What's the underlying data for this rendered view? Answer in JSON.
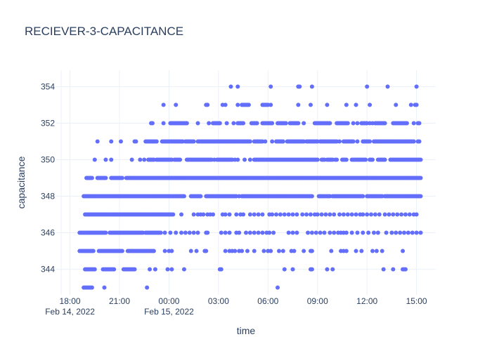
{
  "chart_data": {
    "type": "scatter",
    "title": "RECIEVER-3-CAPACITANCE",
    "xlabel": "time",
    "ylabel": "capacitance",
    "marker_color": "#636efa",
    "grid": true,
    "x_range": [
      "2022-02-14T17:10",
      "2022-02-15T16:10"
    ],
    "y_range": [
      342.6,
      354.9
    ],
    "x_ticks": [
      {
        "t": "2022-02-14T18:00",
        "label": "18:00",
        "sub": "Feb 14, 2022"
      },
      {
        "t": "2022-02-14T21:00",
        "label": "21:00",
        "sub": ""
      },
      {
        "t": "2022-02-15T00:00",
        "label": "00:00",
        "sub": "Feb 15, 2022"
      },
      {
        "t": "2022-02-15T03:00",
        "label": "03:00",
        "sub": ""
      },
      {
        "t": "2022-02-15T06:00",
        "label": "06:00",
        "sub": ""
      },
      {
        "t": "2022-02-15T09:00",
        "label": "09:00",
        "sub": ""
      },
      {
        "t": "2022-02-15T12:00",
        "label": "12:00",
        "sub": ""
      },
      {
        "t": "2022-02-15T15:00",
        "label": "15:00",
        "sub": ""
      }
    ],
    "y_ticks": [
      344,
      346,
      348,
      350,
      352,
      354
    ],
    "series": [
      {
        "values_by_level": [
          {
            "y": 343,
            "ranges": [
              [
                "2022-02-14T18:50",
                "2022-02-14T19:20"
              ]
            ],
            "points": [
              "2022-02-14T18:55",
              "2022-02-14T19:05",
              "2022-02-14T20:05",
              "2022-02-14T22:40",
              "2022-02-15T06:35"
            ]
          },
          {
            "y": 344,
            "ranges": [
              [
                "2022-02-14T18:55",
                "2022-02-14T19:30"
              ],
              [
                "2022-02-14T20:00",
                "2022-02-14T20:40"
              ],
              [
                "2022-02-14T21:15",
                "2022-02-14T21:55"
              ]
            ],
            "points": [
              "2022-02-14T22:50",
              "2022-02-14T23:10",
              "2022-02-14T23:55",
              "2022-02-15T00:10",
              "2022-02-15T00:55",
              "2022-02-15T03:05",
              "2022-02-15T03:10",
              "2022-02-15T07:00",
              "2022-02-15T07:30",
              "2022-02-15T08:35",
              "2022-02-15T08:40",
              "2022-02-15T09:35",
              "2022-02-15T09:55",
              "2022-02-15T13:00",
              "2022-02-15T13:35",
              "2022-02-15T14:10",
              "2022-02-15T14:15",
              "2022-02-15T14:20"
            ]
          },
          {
            "y": 345,
            "ranges": [
              [
                "2022-02-14T18:35",
                "2022-02-14T19:25"
              ],
              [
                "2022-02-14T19:45",
                "2022-02-14T21:10"
              ],
              [
                "2022-02-14T21:30",
                "2022-02-14T23:05"
              ]
            ],
            "points": [
              "2022-02-14T23:45",
              "2022-02-15T00:00",
              "2022-02-15T00:10",
              "2022-02-15T01:20",
              "2022-02-15T01:40",
              "2022-02-15T02:10",
              "2022-02-15T02:15",
              "2022-02-15T03:25",
              "2022-02-15T03:40",
              "2022-02-15T03:50",
              "2022-02-15T04:00",
              "2022-02-15T04:15",
              "2022-02-15T04:25",
              "2022-02-15T04:45",
              "2022-02-15T05:10",
              "2022-02-15T05:45",
              "2022-02-15T06:00",
              "2022-02-15T06:10",
              "2022-02-15T06:40",
              "2022-02-15T06:55",
              "2022-02-15T07:25",
              "2022-02-15T07:35",
              "2022-02-15T08:10",
              "2022-02-15T08:35",
              "2022-02-15T08:40",
              "2022-02-15T09:50",
              "2022-02-15T10:25",
              "2022-02-15T10:35",
              "2022-02-15T10:45",
              "2022-02-15T11:20",
              "2022-02-15T11:40",
              "2022-02-15T12:20",
              "2022-02-15T12:35",
              "2022-02-15T12:55",
              "2022-02-15T14:10"
            ]
          },
          {
            "y": 346,
            "ranges": [
              [
                "2022-02-14T18:35",
                "2022-02-14T20:10"
              ],
              [
                "2022-02-14T20:25",
                "2022-02-14T22:25"
              ],
              [
                "2022-02-14T22:35",
                "2022-02-14T23:30"
              ]
            ],
            "points": [
              "2022-02-14T23:45",
              "2022-02-15T00:05",
              "2022-02-15T00:25",
              "2022-02-15T00:45",
              "2022-02-15T01:00",
              "2022-02-15T01:15",
              "2022-02-15T01:30",
              "2022-02-15T01:45",
              "2022-02-15T02:15",
              "2022-02-15T02:20",
              "2022-02-15T03:10",
              "2022-02-15T03:25",
              "2022-02-15T03:40",
              "2022-02-15T04:05",
              "2022-02-15T04:15",
              "2022-02-15T04:40",
              "2022-02-15T04:55",
              "2022-02-15T05:10",
              "2022-02-15T05:25",
              "2022-02-15T05:40",
              "2022-02-15T05:55",
              "2022-02-15T06:05",
              "2022-02-15T06:20",
              "2022-02-15T07:15",
              "2022-02-15T07:30",
              "2022-02-15T07:45",
              "2022-02-15T08:25",
              "2022-02-15T08:40",
              "2022-02-15T08:55",
              "2022-02-15T09:10",
              "2022-02-15T09:25",
              "2022-02-15T09:45",
              "2022-02-15T10:00",
              "2022-02-15T10:15",
              "2022-02-15T10:25",
              "2022-02-15T10:35",
              "2022-02-15T10:45",
              "2022-02-15T11:05",
              "2022-02-15T11:25",
              "2022-02-15T11:45",
              "2022-02-15T12:05",
              "2022-02-15T12:25",
              "2022-02-15T12:40",
              "2022-02-15T13:10",
              "2022-02-15T13:30",
              "2022-02-15T13:45",
              "2022-02-15T14:00",
              "2022-02-15T14:15",
              "2022-02-15T14:30",
              "2022-02-15T14:45",
              "2022-02-15T15:00",
              "2022-02-15T15:15"
            ]
          },
          {
            "y": 347,
            "ranges": [
              [
                "2022-02-14T18:55",
                "2022-02-14T23:55"
              ],
              [
                "2022-02-15T00:00",
                "2022-02-15T00:15"
              ]
            ],
            "points": [
              "2022-02-15T00:45",
              "2022-02-15T01:30",
              "2022-02-15T01:45",
              "2022-02-15T01:55",
              "2022-02-15T02:05",
              "2022-02-15T02:20",
              "2022-02-15T02:30",
              "2022-02-15T02:40",
              "2022-02-15T03:15",
              "2022-02-15T03:25",
              "2022-02-15T03:40",
              "2022-02-15T04:05",
              "2022-02-15T04:20",
              "2022-02-15T04:30",
              "2022-02-15T04:55",
              "2022-02-15T05:10",
              "2022-02-15T05:25",
              "2022-02-15T05:40",
              "2022-02-15T06:05",
              "2022-02-15T06:15",
              "2022-02-15T06:30",
              "2022-02-15T06:45",
              "2022-02-15T07:00",
              "2022-02-15T07:15",
              "2022-02-15T07:30",
              "2022-02-15T07:45",
              "2022-02-15T08:05",
              "2022-02-15T08:20",
              "2022-02-15T08:35",
              "2022-02-15T08:50",
              "2022-02-15T09:00",
              "2022-02-15T09:15",
              "2022-02-15T09:30",
              "2022-02-15T09:45",
              "2022-02-15T10:00",
              "2022-02-15T10:20",
              "2022-02-15T10:35",
              "2022-02-15T10:50",
              "2022-02-15T11:05",
              "2022-02-15T11:20",
              "2022-02-15T11:35",
              "2022-02-15T11:45",
              "2022-02-15T12:00",
              "2022-02-15T12:15",
              "2022-02-15T12:30",
              "2022-02-15T12:45",
              "2022-02-15T13:05",
              "2022-02-15T13:20",
              "2022-02-15T13:35",
              "2022-02-15T13:50",
              "2022-02-15T14:05",
              "2022-02-15T14:20",
              "2022-02-15T14:35",
              "2022-02-15T14:50",
              "2022-02-15T15:00"
            ]
          },
          {
            "y": 348,
            "ranges": [
              [
                "2022-02-14T18:50",
                "2022-02-15T00:55"
              ],
              [
                "2022-02-15T01:20",
                "2022-02-15T01:55"
              ],
              [
                "2022-02-15T02:15",
                "2022-02-15T03:05"
              ],
              [
                "2022-02-15T03:20",
                "2022-02-15T04:05"
              ],
              [
                "2022-02-15T04:25",
                "2022-02-15T08:40"
              ],
              [
                "2022-02-15T09:05",
                "2022-02-15T09:45"
              ],
              [
                "2022-02-15T10:00",
                "2022-02-15T11:45"
              ],
              [
                "2022-02-15T12:00",
                "2022-02-15T12:55"
              ],
              [
                "2022-02-15T13:05",
                "2022-02-15T15:15"
              ]
            ],
            "points": [
              "2022-02-15T03:10",
              "2022-02-15T03:15",
              "2022-02-15T04:15",
              "2022-02-15T09:55"
            ]
          },
          {
            "y": 349,
            "ranges": [
              [
                "2022-02-14T19:00",
                "2022-02-14T19:20"
              ],
              [
                "2022-02-14T19:40",
                "2022-02-14T20:10"
              ],
              [
                "2022-02-14T20:30",
                "2022-02-14T21:10"
              ],
              [
                "2022-02-14T21:25",
                "2022-02-15T15:15"
              ]
            ],
            "points": []
          },
          {
            "y": 350,
            "ranges": [
              [
                "2022-02-14T22:45",
                "2022-02-14T23:05"
              ],
              [
                "2022-02-14T23:15",
                "2022-02-15T00:10"
              ],
              [
                "2022-02-15T00:20",
                "2022-02-15T00:40"
              ],
              [
                "2022-02-15T01:05",
                "2022-02-15T01:25"
              ],
              [
                "2022-02-15T01:30",
                "2022-02-15T02:35"
              ],
              [
                "2022-02-15T02:55",
                "2022-02-15T03:50"
              ],
              [
                "2022-02-15T05:10",
                "2022-02-15T08:05"
              ],
              [
                "2022-02-15T08:10",
                "2022-02-15T09:00"
              ],
              [
                "2022-02-15T09:15",
                "2022-02-15T09:25"
              ],
              [
                "2022-02-15T09:35",
                "2022-02-15T09:55"
              ],
              [
                "2022-02-15T10:30",
                "2022-02-15T10:45"
              ],
              [
                "2022-02-15T11:05",
                "2022-02-15T11:55"
              ],
              [
                "2022-02-15T12:10",
                "2022-02-15T12:20"
              ],
              [
                "2022-02-15T12:40",
                "2022-02-15T13:05"
              ],
              [
                "2022-02-15T13:25",
                "2022-02-15T15:15"
              ]
            ],
            "points": [
              "2022-02-14T19:30",
              "2022-02-14T20:10",
              "2022-02-14T20:30",
              "2022-02-14T21:45",
              "2022-02-14T22:15",
              "2022-02-14T22:30",
              "2022-02-15T02:45",
              "2022-02-15T04:00",
              "2022-02-15T04:10",
              "2022-02-15T04:35",
              "2022-02-15T04:55",
              "2022-02-15T10:05",
              "2022-02-15T10:10",
              "2022-02-15T12:40"
            ]
          },
          {
            "y": 351,
            "ranges": [
              [
                "2022-02-14T22:35",
                "2022-02-14T23:15"
              ],
              [
                "2022-02-14T23:35",
                "2022-02-15T00:50"
              ],
              [
                "2022-02-15T01:00",
                "2022-02-15T01:30"
              ],
              [
                "2022-02-15T01:45",
                "2022-02-15T04:55"
              ],
              [
                "2022-02-15T05:10",
                "2022-02-15T05:40"
              ],
              [
                "2022-02-15T06:30",
                "2022-02-15T06:50"
              ],
              [
                "2022-02-15T07:10",
                "2022-02-15T08:10"
              ],
              [
                "2022-02-15T08:20",
                "2022-02-15T08:55"
              ],
              [
                "2022-02-15T09:10",
                "2022-02-15T10:10"
              ],
              [
                "2022-02-15T10:35",
                "2022-02-15T11:10"
              ],
              [
                "2022-02-15T11:45",
                "2022-02-15T12:10"
              ],
              [
                "2022-02-15T12:25",
                "2022-02-15T14:50"
              ]
            ],
            "points": [
              "2022-02-14T19:40",
              "2022-02-14T20:30",
              "2022-02-14T21:05",
              "2022-02-14T21:55",
              "2022-02-14T22:00",
              "2022-02-15T05:50",
              "2022-02-15T06:15",
              "2022-02-15T06:55",
              "2022-02-15T09:00",
              "2022-02-15T10:20",
              "2022-02-15T11:25",
              "2022-02-15T15:05",
              "2022-02-15T15:10"
            ]
          },
          {
            "y": 352,
            "ranges": [
              [
                "2022-02-15T00:05",
                "2022-02-15T01:05"
              ],
              [
                "2022-02-15T02:40",
                "2022-02-15T03:05"
              ],
              [
                "2022-02-15T04:10",
                "2022-02-15T04:30"
              ],
              [
                "2022-02-15T05:00",
                "2022-02-15T05:20"
              ],
              [
                "2022-02-15T05:40",
                "2022-02-15T06:15"
              ],
              [
                "2022-02-15T06:35",
                "2022-02-15T07:05"
              ],
              [
                "2022-02-15T07:20",
                "2022-02-15T07:50"
              ],
              [
                "2022-02-15T08:50",
                "2022-02-15T09:45"
              ],
              [
                "2022-02-15T10:15",
                "2022-02-15T10:50"
              ],
              [
                "2022-02-15T11:40",
                "2022-02-15T12:00"
              ],
              [
                "2022-02-15T12:30",
                "2022-02-15T13:00"
              ],
              [
                "2022-02-15T13:35",
                "2022-02-15T14:25"
              ]
            ],
            "points": [
              "2022-02-14T22:55",
              "2022-02-14T23:00",
              "2022-02-14T23:40",
              "2022-02-15T01:45",
              "2022-02-15T02:25",
              "2022-02-15T03:30",
              "2022-02-15T03:55",
              "2022-02-15T07:00",
              "2022-02-15T08:10",
              "2022-02-15T10:10",
              "2022-02-15T11:10",
              "2022-02-15T11:25",
              "2022-02-15T12:10",
              "2022-02-15T12:20",
              "2022-02-15T13:05",
              "2022-02-15T14:50",
              "2022-02-15T15:05",
              "2022-02-15T15:10"
            ]
          },
          {
            "y": 353,
            "ranges": [
              [
                "2022-02-15T04:25",
                "2022-02-15T04:50"
              ],
              [
                "2022-02-15T05:40",
                "2022-02-15T06:00"
              ]
            ],
            "points": [
              "2022-02-14T23:40",
              "2022-02-15T00:25",
              "2022-02-15T02:15",
              "2022-02-15T02:20",
              "2022-02-15T03:15",
              "2022-02-15T03:25",
              "2022-02-15T04:10",
              "2022-02-15T06:10",
              "2022-02-15T07:50",
              "2022-02-15T08:35",
              "2022-02-15T09:35",
              "2022-02-15T10:45",
              "2022-02-15T11:20",
              "2022-02-15T12:10",
              "2022-02-15T13:45",
              "2022-02-15T14:40",
              "2022-02-15T14:55",
              "2022-02-15T15:00"
            ]
          },
          {
            "y": 354,
            "ranges": [],
            "points": [
              "2022-02-15T03:45",
              "2022-02-15T04:10",
              "2022-02-15T06:10",
              "2022-02-15T07:50",
              "2022-02-15T07:55",
              "2022-02-15T08:40",
              "2022-02-15T12:00",
              "2022-02-15T13:15",
              "2022-02-15T15:00"
            ]
          }
        ]
      }
    ]
  }
}
